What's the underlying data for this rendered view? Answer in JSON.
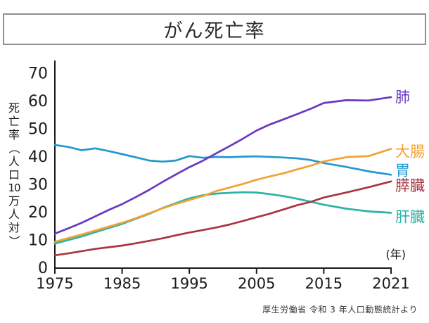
{
  "title": "がん死亡率",
  "source": "厚生労働省 令和 3 年人口動態統計より",
  "chart_data": {
    "type": "line",
    "title": "がん死亡率",
    "ylabel": "死亡率（人口10万人対）",
    "ylabel_parts": [
      "死",
      "亡",
      "率",
      "（",
      "人",
      "口",
      "10",
      "万",
      "人",
      "対",
      "）"
    ],
    "x_unit_label": "(年)",
    "x_ticks": [
      1975,
      1985,
      1995,
      2005,
      2015,
      2021
    ],
    "y_ticks": [
      0,
      10,
      20,
      30,
      40,
      50,
      60,
      70
    ],
    "ylim": [
      0,
      70
    ],
    "grid": false,
    "legend_position": "right-of-line-ends",
    "x_scale_note": "tick marks equally spaced; 2015-2021 segment stretched",
    "years": [
      1975,
      1977,
      1979,
      1981,
      1983,
      1985,
      1987,
      1989,
      1991,
      1993,
      1995,
      1997,
      1999,
      2001,
      2003,
      2005,
      2007,
      2009,
      2011,
      2013,
      2015,
      2017,
      2019,
      2021
    ],
    "series": [
      {
        "name": "肺",
        "color": "#6a38c2",
        "values": [
          12.4,
          14.3,
          16.3,
          18.6,
          20.9,
          23.0,
          25.5,
          28.1,
          31.0,
          33.7,
          36.3,
          38.6,
          41.3,
          43.9,
          46.6,
          49.5,
          51.7,
          53.5,
          55.4,
          57.3,
          59.4,
          60.4,
          60.3,
          61.5
        ]
      },
      {
        "name": "大腸",
        "color": "#f2a134",
        "values": [
          9.5,
          10.8,
          12.1,
          13.5,
          14.9,
          16.3,
          17.9,
          19.7,
          21.5,
          23.1,
          24.5,
          25.9,
          27.7,
          29.0,
          30.3,
          31.8,
          33.0,
          34.1,
          35.5,
          36.8,
          38.4,
          39.9,
          40.3,
          42.9
        ]
      },
      {
        "name": "胃",
        "color": "#2397cf",
        "values": [
          44.3,
          43.6,
          42.4,
          43.1,
          42.1,
          41.0,
          39.9,
          38.7,
          38.3,
          38.7,
          40.3,
          39.7,
          40.0,
          39.9,
          40.1,
          40.2,
          40.0,
          39.8,
          39.5,
          38.9,
          37.8,
          36.4,
          34.8,
          33.6
        ]
      },
      {
        "name": "膵臓",
        "color": "#a93542",
        "values": [
          4.6,
          5.3,
          6.1,
          6.9,
          7.5,
          8.1,
          8.9,
          9.8,
          10.7,
          11.8,
          12.8,
          13.7,
          14.6,
          15.7,
          17.0,
          18.3,
          19.6,
          21.1,
          22.6,
          23.8,
          25.4,
          27.2,
          29.1,
          31.2
        ]
      },
      {
        "name": "肝臓",
        "color": "#2ab3a7",
        "values": [
          8.8,
          10.1,
          11.4,
          12.9,
          14.4,
          15.9,
          17.7,
          19.5,
          21.6,
          23.4,
          25.1,
          26.2,
          26.8,
          27.1,
          27.3,
          27.2,
          26.6,
          25.9,
          25.0,
          23.9,
          22.8,
          21.4,
          20.4,
          19.9
        ]
      }
    ]
  }
}
